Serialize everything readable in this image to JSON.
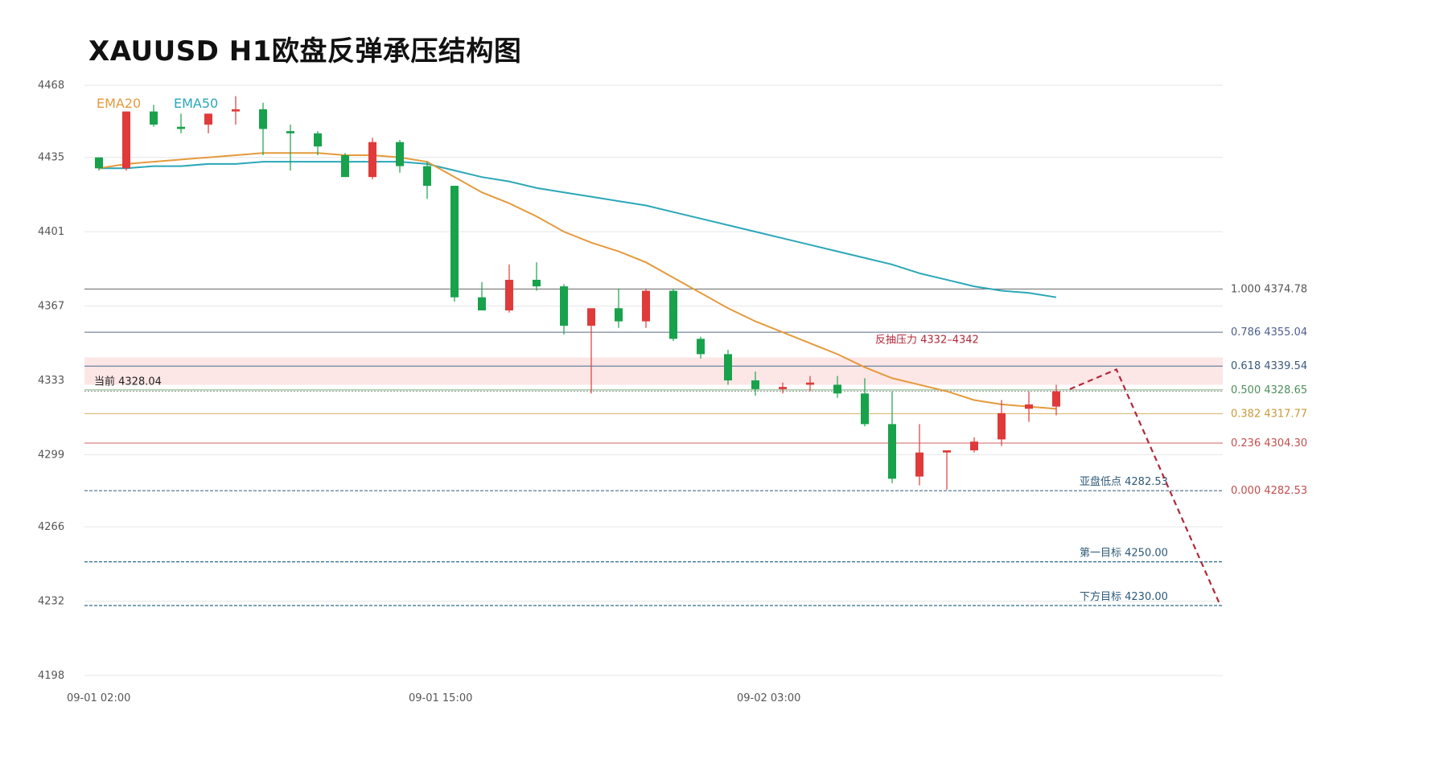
{
  "chart_data": {
    "type": "candlestick",
    "title": "XAUUSD  H1欧盘反弹承压结构图",
    "ylim": [
      4198,
      4468
    ],
    "yticks": [
      4198,
      4232,
      4266,
      4299,
      4333,
      4367,
      4401,
      4435,
      4468
    ],
    "xticks": [
      {
        "label": "09-01 02:00",
        "index": 0
      },
      {
        "label": "09-01 15:00",
        "index": 12.5
      },
      {
        "label": "09-02 03:00",
        "index": 24.5
      }
    ],
    "legend": [
      {
        "name": "EMA20",
        "color": "#e49a3c"
      },
      {
        "name": "EMA50",
        "color": "#2aa7b8"
      }
    ],
    "colors": {
      "up": "#e03a3a",
      "down": "#18a24b",
      "ema20": "#e49a3c",
      "ema50": "#2aa7b8",
      "projection": "#b0283a"
    },
    "candles": [
      {
        "o": 4435,
        "h": 4435,
        "l": 4429,
        "c": 4430
      },
      {
        "o": 4430,
        "h": 4456,
        "l": 4429,
        "c": 4456
      },
      {
        "o": 4456,
        "h": 4459,
        "l": 4449,
        "c": 4450
      },
      {
        "o": 4449,
        "h": 4455,
        "l": 4446,
        "c": 4448
      },
      {
        "o": 4450,
        "h": 4455,
        "l": 4446,
        "c": 4455
      },
      {
        "o": 4456,
        "h": 4463,
        "l": 4450,
        "c": 4457
      },
      {
        "o": 4457,
        "h": 4460,
        "l": 4436,
        "c": 4448
      },
      {
        "o": 4447,
        "h": 4450,
        "l": 4429,
        "c": 4446
      },
      {
        "o": 4446,
        "h": 4447,
        "l": 4436,
        "c": 4440
      },
      {
        "o": 4436,
        "h": 4437,
        "l": 4426,
        "c": 4426
      },
      {
        "o": 4426,
        "h": 4444,
        "l": 4425,
        "c": 4442
      },
      {
        "o": 4442,
        "h": 4443,
        "l": 4428,
        "c": 4431
      },
      {
        "o": 4431,
        "h": 4433,
        "l": 4416,
        "c": 4422
      },
      {
        "o": 4422,
        "h": 4422,
        "l": 4369,
        "c": 4371
      },
      {
        "o": 4371,
        "h": 4378,
        "l": 4365,
        "c": 4365
      },
      {
        "o": 4365,
        "h": 4386,
        "l": 4364,
        "c": 4379
      },
      {
        "o": 4379,
        "h": 4387,
        "l": 4374,
        "c": 4376
      },
      {
        "o": 4376,
        "h": 4377,
        "l": 4354,
        "c": 4358
      },
      {
        "o": 4358,
        "h": 4365,
        "l": 4327,
        "c": 4366
      },
      {
        "o": 4366,
        "h": 4375,
        "l": 4357,
        "c": 4360
      },
      {
        "o": 4360,
        "h": 4375,
        "l": 4357,
        "c": 4374
      },
      {
        "o": 4374,
        "h": 4375,
        "l": 4351,
        "c": 4352
      },
      {
        "o": 4352,
        "h": 4353,
        "l": 4343,
        "c": 4345
      },
      {
        "o": 4345,
        "h": 4347,
        "l": 4331,
        "c": 4333
      },
      {
        "o": 4333,
        "h": 4337,
        "l": 4326,
        "c": 4329
      },
      {
        "o": 4329,
        "h": 4332,
        "l": 4327,
        "c": 4330
      },
      {
        "o": 4331,
        "h": 4335,
        "l": 4328,
        "c": 4332
      },
      {
        "o": 4331,
        "h": 4335,
        "l": 4325,
        "c": 4327
      },
      {
        "o": 4327,
        "h": 4334,
        "l": 4312,
        "c": 4313
      },
      {
        "o": 4313,
        "h": 4328,
        "l": 4286,
        "c": 4288
      },
      {
        "o": 4289,
        "h": 4313,
        "l": 4285,
        "c": 4300
      },
      {
        "o": 4300,
        "h": 4301,
        "l": 4283,
        "c": 4301
      },
      {
        "o": 4301,
        "h": 4307,
        "l": 4300,
        "c": 4305
      },
      {
        "o": 4306,
        "h": 4324,
        "l": 4303,
        "c": 4318
      },
      {
        "o": 4320,
        "h": 4328,
        "l": 4314,
        "c": 4322
      },
      {
        "o": 4321,
        "h": 4331,
        "l": 4317,
        "c": 4328
      }
    ],
    "ema20": [
      4430,
      4432,
      4433,
      4434,
      4435,
      4436,
      4437,
      4437,
      4437,
      4436,
      4436,
      4435,
      4433,
      4426,
      4419,
      4414,
      4408,
      4401,
      4396,
      4392,
      4387,
      4380,
      4373,
      4366,
      4360,
      4355,
      4350,
      4345,
      4339,
      4334,
      4331,
      4328,
      4324,
      4322,
      4321,
      4320
    ],
    "ema50": [
      4430,
      4430,
      4431,
      4431,
      4432,
      4432,
      4433,
      4433,
      4433,
      4433,
      4433,
      4433,
      4432,
      4429,
      4426,
      4424,
      4421,
      4419,
      4417,
      4415,
      4413,
      4410,
      4407,
      4404,
      4401,
      4398,
      4395,
      4392,
      4389,
      4386,
      4382,
      4379,
      4376,
      4374,
      4373,
      4371
    ],
    "fib_levels": [
      {
        "ratio": "1.000",
        "price": 4374.78,
        "color": "#666666",
        "label_color": "#555555"
      },
      {
        "ratio": "0.786",
        "price": 4355.04,
        "color": "#5a6a86",
        "label_color": "#4e5f8e"
      },
      {
        "ratio": "0.618",
        "price": 4339.54,
        "color": "#4a6a8a",
        "label_color": "#3a5a7a"
      },
      {
        "ratio": "0.500",
        "price": 4328.65,
        "color": "#7aaa7a",
        "label_color": "#4f8f5a"
      },
      {
        "ratio": "0.382",
        "price": 4317.77,
        "color": "#d8b060",
        "label_color": "#c89a3a"
      },
      {
        "ratio": "0.236",
        "price": 4304.3,
        "color": "#d06060",
        "label_color": "#c0504d"
      },
      {
        "ratio": "0.000",
        "price": 4282.53,
        "color": "#4a6a8a",
        "label_color": "#c0504d"
      }
    ],
    "fib_texts": [
      "1.000  4374.78",
      "0.786  4355.04",
      "0.618  4339.54",
      "0.500  4328.65",
      "0.382  4317.77",
      "0.236  4304.30",
      "0.000  4282.53"
    ],
    "resistance_zone": {
      "low": 4332,
      "high": 4342,
      "label": "反抽压力  4332–4342",
      "label_color": "#b0283a"
    },
    "current": {
      "price": 4328.04,
      "label": "当前 4328.04"
    },
    "annotations": [
      {
        "price": 4282.53,
        "label": "亚盘低点 4282.53"
      },
      {
        "price": 4250.0,
        "label": "第一目标 4250.00"
      },
      {
        "price": 4230.0,
        "label": "下方目标 4230.00"
      }
    ],
    "projection": [
      {
        "index": 35.5,
        "price": 4329
      },
      {
        "index": 37.2,
        "price": 4338
      },
      {
        "index": 41.0,
        "price": 4230
      }
    ],
    "grid": true
  }
}
